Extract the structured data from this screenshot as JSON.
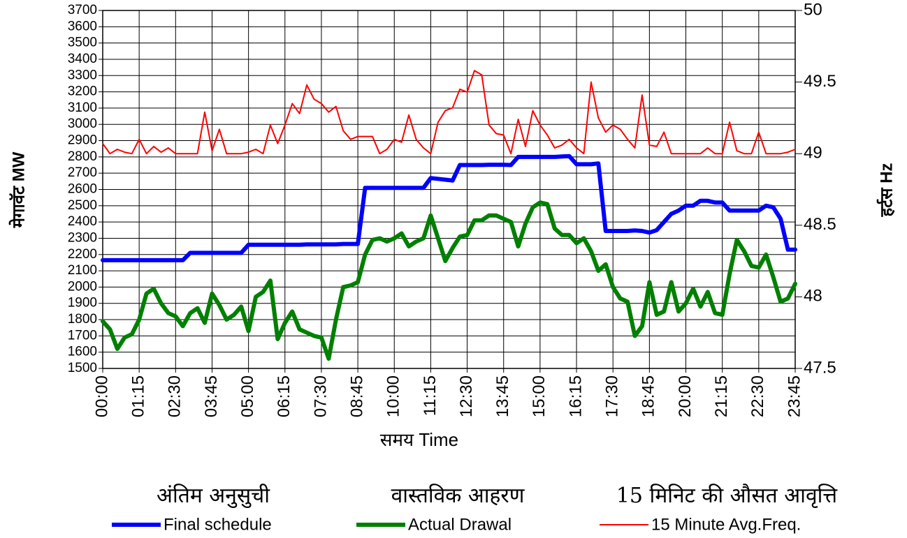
{
  "chart_data": {
    "type": "line",
    "x_label": "समय   Time",
    "y_label": "मेगावॅट  MW",
    "y2_label": "हर्टस Hz",
    "categories": [
      "00:00",
      null,
      null,
      null,
      null,
      "01:15",
      null,
      null,
      null,
      null,
      "02:30",
      null,
      null,
      null,
      null,
      "03:45",
      null,
      null,
      null,
      null,
      "05:00",
      null,
      null,
      null,
      null,
      "06:15",
      null,
      null,
      null,
      null,
      "07:30",
      null,
      null,
      null,
      null,
      "08:45",
      null,
      null,
      null,
      null,
      "10:00",
      null,
      null,
      null,
      null,
      "11:15",
      null,
      null,
      null,
      null,
      "12:30",
      null,
      null,
      null,
      null,
      "13:45",
      null,
      null,
      null,
      null,
      "15:00",
      null,
      null,
      null,
      null,
      "16:15",
      null,
      null,
      null,
      null,
      "17:30",
      null,
      null,
      null,
      null,
      "18:45",
      null,
      null,
      null,
      null,
      "20:00",
      null,
      null,
      null,
      null,
      "21:15",
      null,
      null,
      null,
      null,
      "22:30",
      null,
      null,
      null,
      null,
      "23:45"
    ],
    "ylim": [
      1500,
      3700
    ],
    "yticks": [
      1500,
      1600,
      1700,
      1800,
      1900,
      2000,
      2100,
      2200,
      2300,
      2400,
      2500,
      2600,
      2700,
      2800,
      2900,
      3000,
      3100,
      3200,
      3300,
      3400,
      3500,
      3600,
      3700
    ],
    "y2lim": [
      47.5,
      50
    ],
    "y2ticks": [
      47.5,
      48,
      48.5,
      49,
      49.5,
      50
    ],
    "grid": true,
    "legend_hindi": [
      "अंतिम अनुसुची",
      "वास्तविक आहरण",
      "15 मिनिट की औसत आवृत्ति"
    ],
    "series": [
      {
        "name": "Final schedule",
        "color": "#0000ff",
        "values": [
          2165,
          2165,
          2165,
          2165,
          2165,
          2165,
          2165,
          2165,
          2165,
          2165,
          2165,
          2165,
          2210,
          2210,
          2210,
          2210,
          2210,
          2210,
          2210,
          2210,
          2260,
          2260,
          2260,
          2260,
          2260,
          2260,
          2260,
          2260,
          2262,
          2262,
          2262,
          2262,
          2262,
          2265,
          2265,
          2265,
          2610,
          2610,
          2610,
          2610,
          2610,
          2610,
          2610,
          2610,
          2610,
          2670,
          2665,
          2660,
          2655,
          2750,
          2750,
          2750,
          2750,
          2752,
          2752,
          2752,
          2750,
          2800,
          2800,
          2800,
          2800,
          2800,
          2800,
          2803,
          2805,
          2755,
          2755,
          2755,
          2760,
          2345,
          2345,
          2345,
          2345,
          2348,
          2345,
          2335,
          2350,
          2400,
          2450,
          2470,
          2500,
          2500,
          2530,
          2530,
          2520,
          2520,
          2470,
          2470,
          2470,
          2470,
          2470,
          2500,
          2490,
          2420,
          2230,
          2230
        ]
      },
      {
        "name": "Actual Drawal",
        "color": "#008000",
        "values": [
          1790,
          1740,
          1620,
          1690,
          1710,
          1800,
          1960,
          1990,
          1900,
          1840,
          1820,
          1760,
          1840,
          1870,
          1780,
          1960,
          1890,
          1800,
          1830,
          1880,
          1730,
          1940,
          1970,
          2040,
          1680,
          1780,
          1850,
          1740,
          1720,
          1700,
          1690,
          1560,
          1800,
          2000,
          2010,
          2030,
          2200,
          2290,
          2300,
          2280,
          2300,
          2330,
          2250,
          2280,
          2300,
          2440,
          2300,
          2160,
          2240,
          2310,
          2320,
          2410,
          2410,
          2440,
          2440,
          2420,
          2400,
          2250,
          2390,
          2490,
          2520,
          2510,
          2360,
          2320,
          2320,
          2270,
          2300,
          2220,
          2100,
          2140,
          2000,
          1930,
          1910,
          1700,
          1760,
          2030,
          1830,
          1850,
          2030,
          1850,
          1900,
          1990,
          1880,
          1970,
          1840,
          1830,
          2080,
          2290,
          2220,
          2130,
          2120,
          2200,
          2060,
          1910,
          1930,
          2020
        ]
      },
      {
        "name": "15 Minute Avg.Freq.",
        "color": "#ff0000",
        "axis": "y2",
        "values": [
          49.07,
          49.0,
          49.03,
          49.01,
          49.0,
          49.1,
          49.0,
          49.05,
          49.01,
          49.04,
          49.0,
          49.0,
          49.0,
          49.0,
          49.29,
          49.02,
          49.17,
          49.0,
          49.0,
          49.0,
          49.01,
          49.03,
          49.0,
          49.2,
          49.07,
          49.2,
          49.35,
          49.28,
          49.48,
          49.38,
          49.35,
          49.29,
          49.33,
          49.16,
          49.1,
          49.12,
          49.12,
          49.12,
          49.0,
          49.03,
          49.1,
          49.08,
          49.27,
          49.1,
          49.04,
          49.0,
          49.22,
          49.3,
          49.32,
          49.45,
          49.43,
          49.58,
          49.55,
          49.2,
          49.14,
          49.13,
          49.0,
          49.24,
          49.05,
          49.3,
          49.2,
          49.13,
          49.04,
          49.06,
          49.1,
          49.04,
          49.0,
          49.5,
          49.25,
          49.15,
          49.2,
          49.17,
          49.1,
          49.04,
          49.41,
          49.06,
          49.05,
          49.15,
          49.0,
          49.0,
          49.0,
          49.0,
          49.0,
          49.04,
          49.0,
          49.0,
          49.22,
          49.02,
          49.0,
          49.0,
          49.15,
          49.0,
          49.0,
          49.0,
          49.01,
          49.03
        ]
      }
    ]
  }
}
